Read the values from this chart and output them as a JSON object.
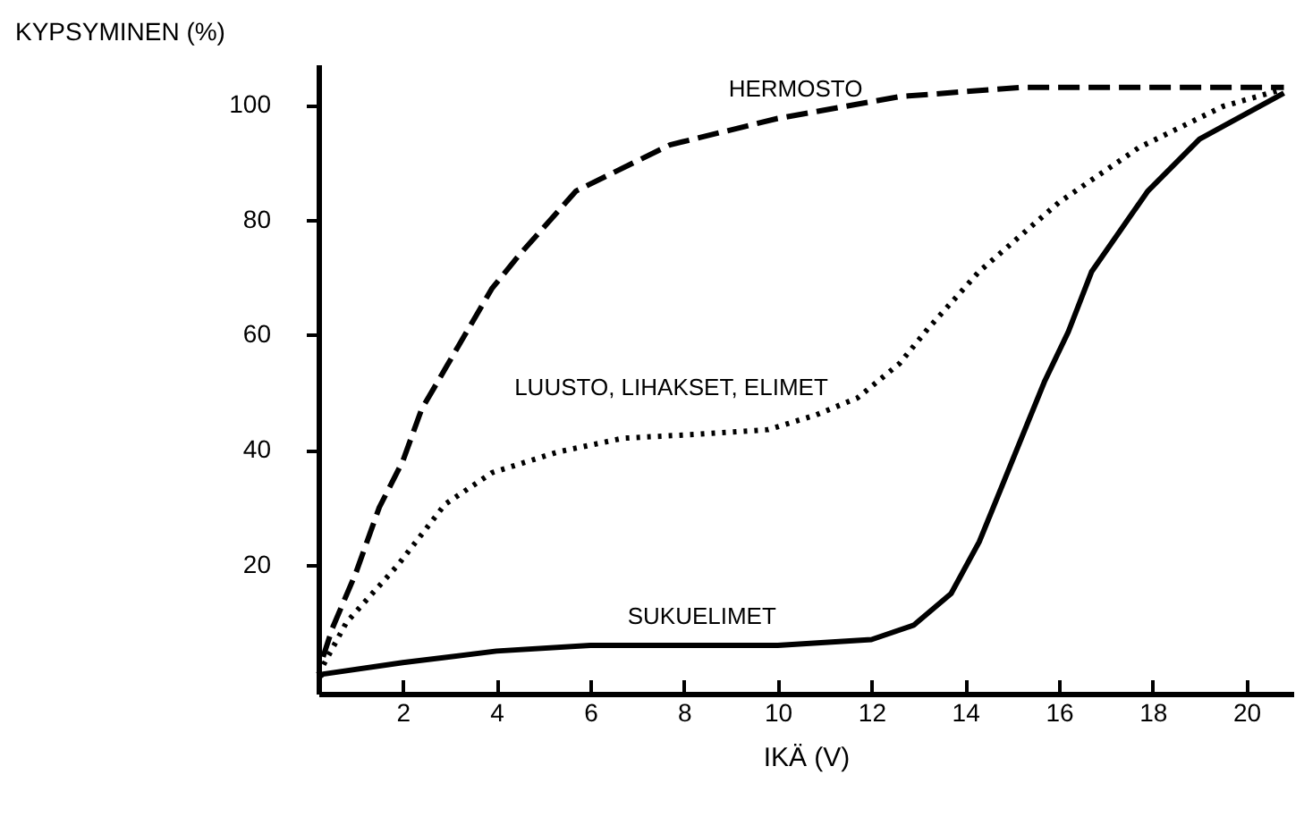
{
  "chart_data": {
    "type": "line",
    "xlabel": "IKÄ (V)",
    "ylabel": "KYPSYMINEN (%)",
    "xlim": [
      0.2,
      21
    ],
    "ylim": [
      -2.4,
      107
    ],
    "xticks": [
      2,
      4,
      6,
      8,
      10,
      12,
      14,
      16,
      18,
      20
    ],
    "yticks": [
      20,
      40,
      60,
      80,
      100
    ],
    "marker": "none",
    "series": [
      {
        "name": "HERMOSTO",
        "color": "#000000",
        "line_style": "dashed",
        "x": [
          0.3,
          0.5,
          1,
          1.5,
          2,
          2.4,
          2.9,
          3.4,
          3.9,
          4.5,
          5.7,
          7.7,
          10,
          12.6,
          15.2,
          20.8
        ],
        "values": [
          4,
          9,
          18.6,
          30,
          38,
          47,
          54,
          61,
          68,
          74,
          85,
          93,
          97.6,
          101.4,
          103,
          103
        ]
      },
      {
        "name": "LUUSTO, LIHAKSET, ELIMET",
        "color": "#000000",
        "line_style": "dotted",
        "x": [
          0.2,
          0.8,
          1.9,
          2.9,
          3.9,
          5.3,
          6.7,
          8.3,
          9.8,
          10.8,
          11.7,
          12.6,
          13.2,
          14.3,
          16,
          17.7,
          19.5,
          20.7
        ],
        "values": [
          1,
          10,
          20,
          30.5,
          36,
          39.6,
          42,
          42.7,
          43.5,
          46,
          49,
          55,
          61,
          71,
          83,
          92.5,
          99.7,
          102.5
        ]
      },
      {
        "name": "SUKUELIMET",
        "color": "#000000",
        "line_style": "solid",
        "x": [
          0.2,
          0.3,
          2,
          4,
          6,
          8,
          10,
          12,
          12.9,
          13.7,
          14.3,
          14.8,
          15.3,
          15.7,
          16.2,
          16.7,
          17.9,
          19,
          20.8
        ],
        "values": [
          0.4,
          1,
          3,
          5,
          6,
          6,
          6,
          7,
          9.5,
          15,
          24,
          34,
          44,
          52,
          60.5,
          71,
          85,
          94,
          102
        ]
      }
    ]
  }
}
